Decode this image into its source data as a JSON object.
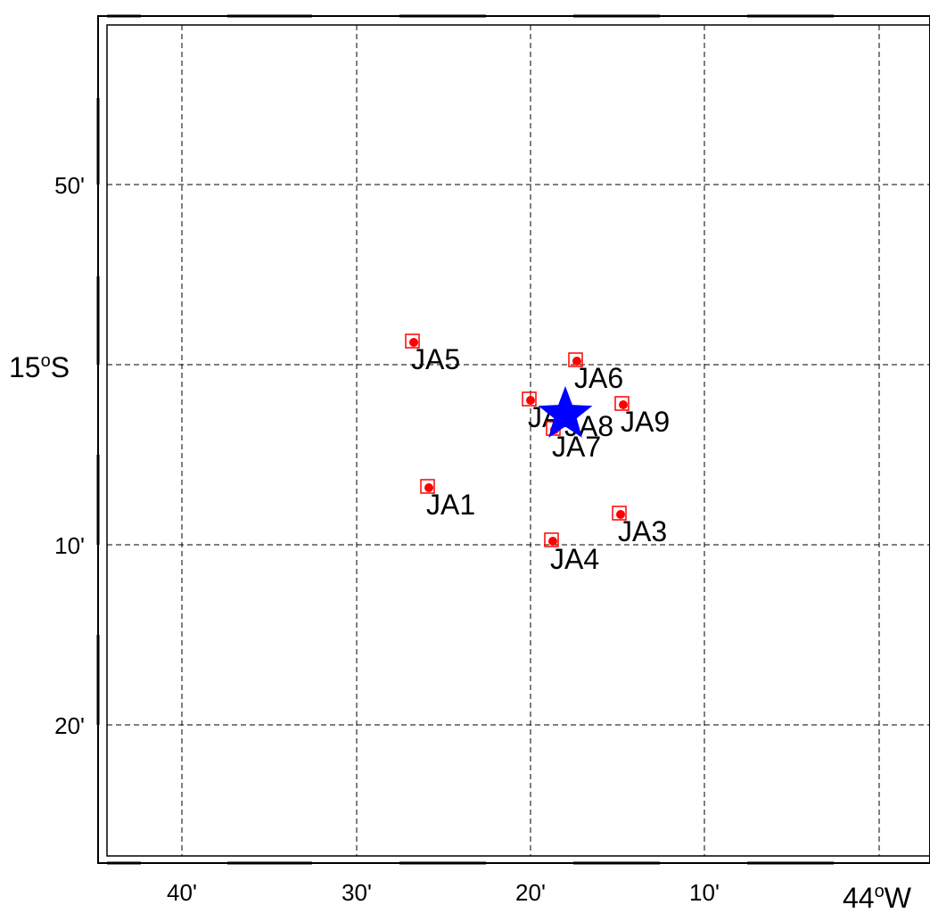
{
  "map": {
    "x_tick_labels": [
      "40'",
      "30'",
      "20'",
      "10'"
    ],
    "x_axis_corner": {
      "deg": "44",
      "sup": "o",
      "hemi": "W"
    },
    "y_tick_labels": [
      "50'",
      "10'",
      "20'"
    ],
    "y_major": {
      "deg": "15",
      "sup": "o",
      "hemi": "S"
    },
    "grid": true,
    "colors": {
      "station_square": "#ff0000",
      "station_dot": "#ff0000",
      "epicenter": "#0000ff",
      "grid": "#000000"
    },
    "stations": [
      {
        "name": "JA5"
      },
      {
        "name": "JA6"
      },
      {
        "name": "JA2"
      },
      {
        "name": "JA9"
      },
      {
        "name": "JA8"
      },
      {
        "name": "JA7"
      },
      {
        "name": "JA1"
      },
      {
        "name": "JA3"
      },
      {
        "name": "JA4"
      }
    ],
    "epicenter": {
      "symbol": "star"
    }
  }
}
